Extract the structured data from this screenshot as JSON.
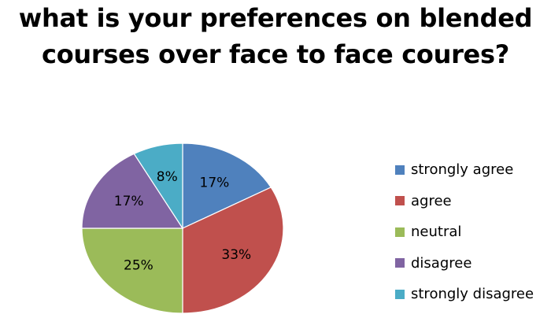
{
  "chart_data": {
    "type": "pie",
    "title": "what is your preferences on blended courses over face to face coures?",
    "title_lines": [
      "what is your preferences on blended",
      "courses over face to face coures?"
    ],
    "legend_position": "right",
    "slices": [
      {
        "label": "strongly agree",
        "value": 17,
        "display": "17%",
        "color": "#4F81BD"
      },
      {
        "label": "agree",
        "value": 33,
        "display": "33%",
        "color": "#C0504D"
      },
      {
        "label": "neutral",
        "value": 25,
        "display": "25%",
        "color": "#9BBB59"
      },
      {
        "label": "disagree",
        "value": 17,
        "display": "17%",
        "color": "#8064A2"
      },
      {
        "label": "strongly disagree",
        "value": 8,
        "display": "8%",
        "color": "#4BACC6"
      }
    ]
  }
}
